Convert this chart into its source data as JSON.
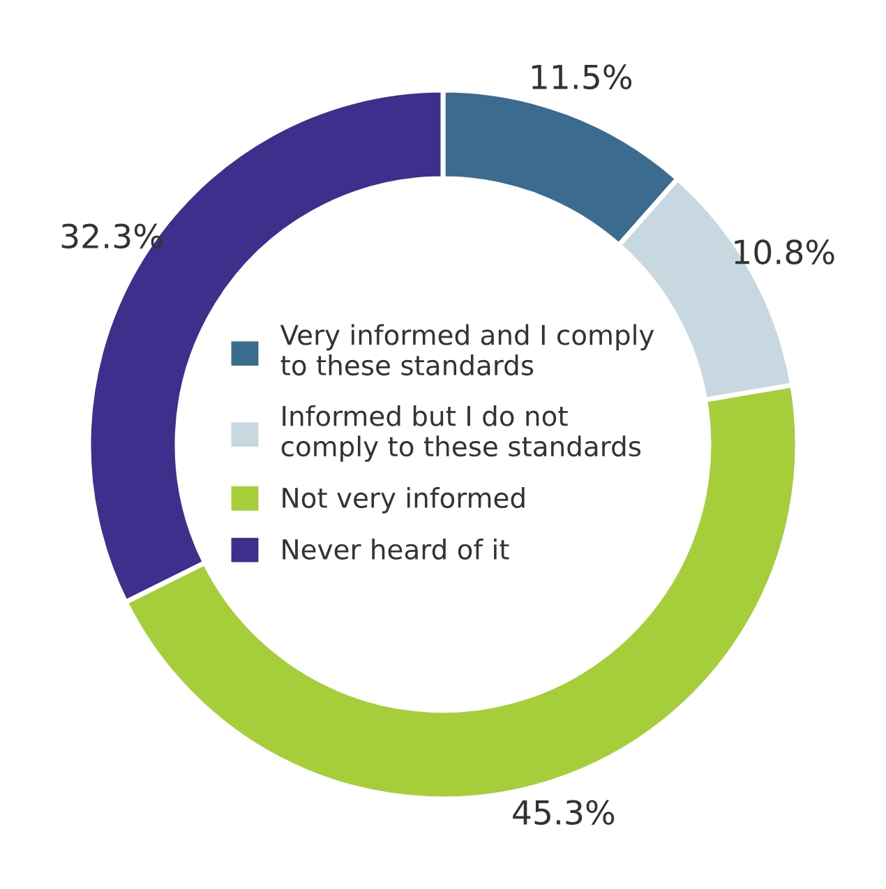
{
  "chart_data": {
    "type": "donut",
    "categories": [
      "Very informed and I comply to these standards",
      "Informed but I do not comply to these standards",
      "Not very informed",
      "Never heard of it"
    ],
    "values": [
      11.5,
      10.8,
      45.3,
      32.3
    ],
    "colors": [
      "#3b6b8e",
      "#c8d8e0",
      "#a6cd3a",
      "#3d2f8c"
    ],
    "value_labels": [
      "11.5%",
      "10.8%",
      "45.3%",
      "32.3%"
    ],
    "legend": "center"
  }
}
